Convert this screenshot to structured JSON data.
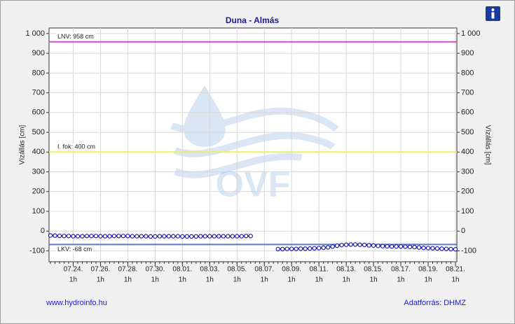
{
  "chart_data": {
    "type": "line",
    "title": "Duna - Almás",
    "y_label": "Vízállás [cm]",
    "watermark": "OVF",
    "footer_left": "www.hydroinfo.hu",
    "footer_right": "Adatforrás: DHMZ",
    "ylim": [
      -155,
      1028
    ],
    "yticks": [
      -100,
      0,
      100,
      200,
      300,
      400,
      500,
      600,
      700,
      800,
      900,
      {
        "value": 1000,
        "label": "1 000"
      }
    ],
    "grid": true,
    "categories": [
      null,
      null,
      null,
      null,
      null,
      [
        "07.24.",
        "1h"
      ],
      null,
      null,
      null,
      null,
      null,
      [
        "07.26.",
        "1h"
      ],
      null,
      null,
      null,
      null,
      null,
      [
        "07.28.",
        "1h"
      ],
      null,
      null,
      null,
      null,
      null,
      [
        "07.30.",
        "1h"
      ],
      null,
      null,
      null,
      null,
      null,
      [
        "08.01.",
        "1h"
      ],
      null,
      null,
      null,
      null,
      null,
      [
        "08.03.",
        "1h"
      ],
      null,
      null,
      null,
      null,
      null,
      [
        "08.05.",
        "1h"
      ],
      null,
      null,
      null,
      null,
      null,
      [
        "08.07.",
        "1h"
      ],
      null,
      null,
      null,
      null,
      null,
      [
        "08.09.",
        "1h"
      ],
      null,
      null,
      null,
      null,
      null,
      [
        "08.11.",
        "1h"
      ],
      null,
      null,
      null,
      null,
      null,
      [
        "08.13.",
        "1h"
      ],
      null,
      null,
      null,
      null,
      null,
      [
        "08.15.",
        "1h"
      ],
      null,
      null,
      null,
      null,
      null,
      [
        "08.17.",
        "1h"
      ],
      null,
      null,
      null,
      null,
      null,
      [
        "08.19.",
        "1h"
      ],
      null,
      null,
      null,
      null,
      null,
      [
        "08.21.",
        "1h"
      ]
    ],
    "series": [
      {
        "color": "#1c1cb0",
        "values": [
          -22,
          -23,
          -24,
          -25,
          -25,
          -26,
          -26,
          -26,
          -25,
          -25,
          -25,
          -26,
          -26,
          -26,
          -25,
          -25,
          -25,
          -25,
          -26,
          -26,
          -26,
          -26,
          -27,
          -27,
          -26,
          -26,
          -26,
          -26,
          -26,
          -27,
          -27,
          -27,
          -27,
          -26,
          -26,
          -26,
          -26,
          -26,
          -26,
          -26,
          -26,
          -26,
          -26,
          -25,
          -25,
          null,
          null,
          null,
          null,
          null,
          -91,
          -91,
          -90,
          -90,
          -90,
          -89,
          -89,
          -88,
          -87,
          -86,
          -84,
          -82,
          -78,
          -74,
          -71,
          -69,
          -68,
          -68,
          -69,
          -70,
          -72,
          -73,
          -75,
          -76,
          -77,
          -78,
          -78,
          -78,
          -79,
          -80,
          -81,
          -83,
          -85,
          -86,
          -87,
          -88,
          -89,
          -90,
          -91,
          -92
        ]
      }
    ],
    "reference_lines": [
      {
        "label": "LNV: 958 cm",
        "value": 958,
        "color": "#d84bd8"
      },
      {
        "label": "I. fok: 400 cm",
        "value": 400,
        "color": "#eeee66"
      },
      {
        "label": "LKV: -68 cm",
        "value": -68,
        "color": "#5a78c8"
      }
    ]
  }
}
